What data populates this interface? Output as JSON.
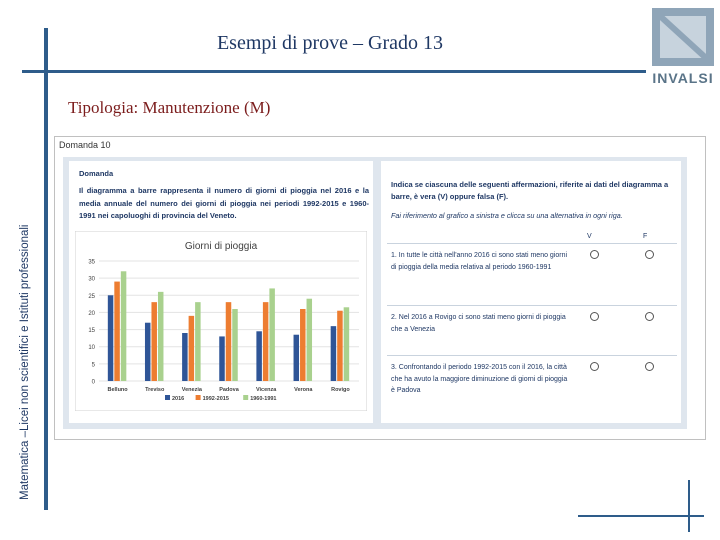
{
  "title": "Esempi di prove – Grado 13",
  "subtitle": "Tipologia: Manutenzione (M)",
  "side_label": "Matematica –Licei non scientifici e Istituti professionali",
  "logo_text": "INVALSI",
  "question": {
    "label": "Domanda 10",
    "left_heading": "Domanda",
    "left_text": "Il diagramma a barre rappresenta il numero di giorni di pioggia nel 2016 e la media annuale del numero dei giorni di pioggia nei periodi 1992-2015 e 1960-1991 nei capoluoghi di provincia del Veneto.",
    "right_text": "Indica se ciascuna delle seguenti affermazioni, riferite ai dati del diagramma a barre, è vera (V) oppure falsa (F).",
    "right_hint": "Fai riferimento al grafico a sinistra e clicca su una alternativa in ogni riga.",
    "col_v": "V",
    "col_f": "F",
    "statements": [
      "1. In tutte le città nell'anno 2016 ci sono stati meno giorni di pioggia della media relativa al periodo 1960-1991",
      "2. Nel 2016 a Rovigo ci sono stati meno giorni di pioggia che a Venezia",
      "3. Confrontando il periodo 1992-2015 con il 2016, la città che ha avuto la maggiore diminuzione di giorni di pioggia è Padova"
    ]
  },
  "chart_data": {
    "type": "bar",
    "title": "Giorni di pioggia",
    "categories": [
      "Belluno",
      "Treviso",
      "Venezia",
      "Padova",
      "Vicenza",
      "Verona",
      "Rovigo"
    ],
    "series": [
      {
        "name": "2016",
        "color": "#2f5597",
        "values": [
          25,
          17,
          14,
          13,
          14.5,
          13.5,
          16
        ]
      },
      {
        "name": "1992-2015",
        "color": "#ed7d31",
        "values": [
          29,
          23,
          19,
          23,
          23,
          21,
          20.5
        ]
      },
      {
        "name": "1960-1991",
        "color": "#a9d18e",
        "values": [
          32,
          26,
          23,
          21,
          27,
          24,
          21.5
        ]
      }
    ],
    "yticks": [
      0,
      5,
      10,
      15,
      20,
      25,
      30,
      35
    ],
    "ylim": [
      0,
      35
    ],
    "grid": true,
    "legend": "bottom"
  }
}
